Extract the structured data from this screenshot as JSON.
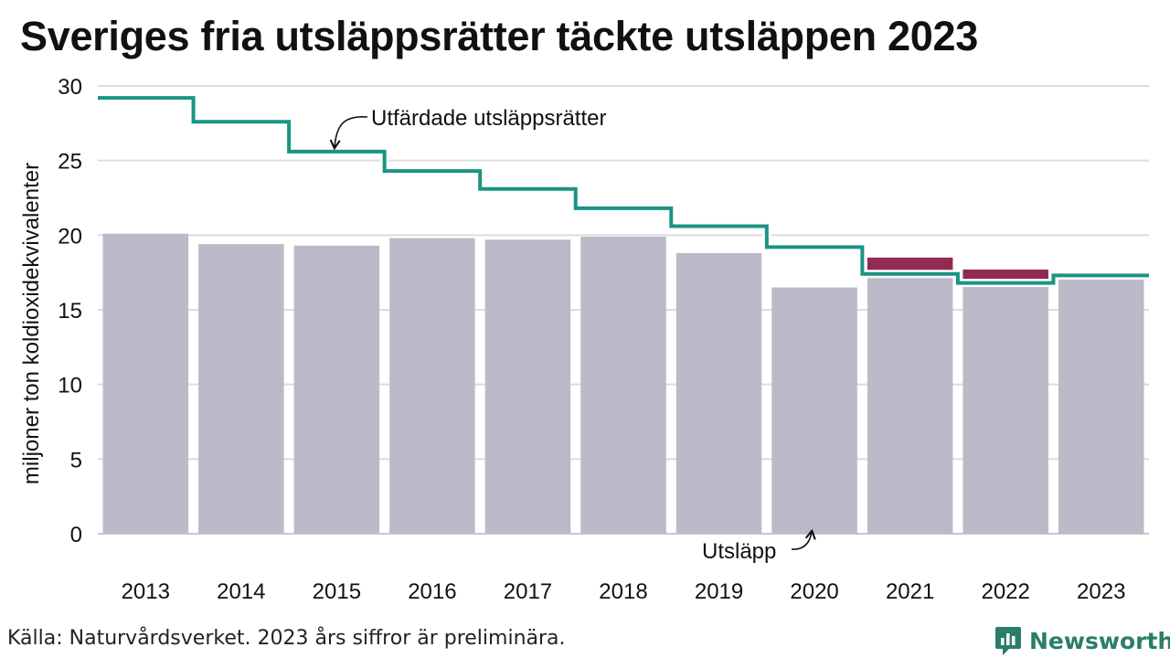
{
  "chart_data": {
    "type": "bar",
    "title": "Sveriges fria utsläppsrätter täckte utsläppen 2023",
    "ylabel": "miljoner ton koldioxidekvivalenter",
    "ylim": [
      0,
      30
    ],
    "yticks": [
      0,
      5,
      10,
      15,
      20,
      25,
      30
    ],
    "categories": [
      "2013",
      "2014",
      "2015",
      "2016",
      "2017",
      "2018",
      "2019",
      "2020",
      "2021",
      "2022",
      "2023"
    ],
    "series": [
      {
        "name": "Utsläpp",
        "type": "bar",
        "color": "#bcbac9",
        "values": [
          20.1,
          19.4,
          19.3,
          19.8,
          19.7,
          19.9,
          18.8,
          16.5,
          18.5,
          17.7,
          17.3
        ]
      },
      {
        "name": "Utfärdade utsläppsrätter",
        "type": "step",
        "color": "#1a9484",
        "values": [
          29.2,
          27.6,
          25.6,
          24.3,
          23.1,
          21.8,
          20.6,
          19.2,
          17.4,
          16.8,
          17.3
        ]
      }
    ],
    "excess_color": "#922b54",
    "grid": true
  },
  "source": "Källa: Naturvårdsverket. 2023 års siffror är preliminära.",
  "brand": {
    "name": "Newsworthy",
    "color": "#2b7d6a"
  }
}
